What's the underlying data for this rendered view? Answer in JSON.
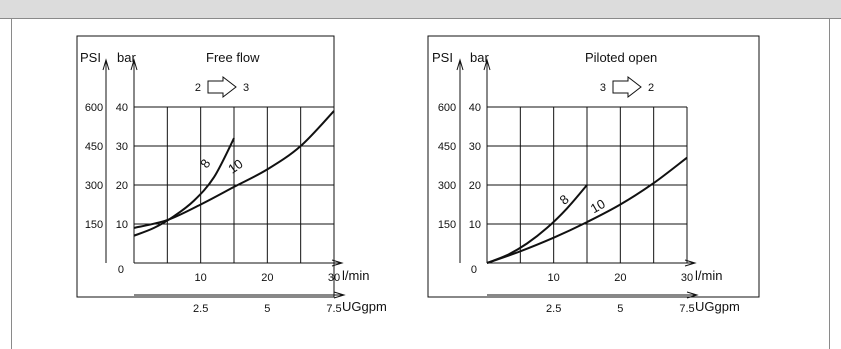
{
  "chart_data": [
    {
      "type": "line",
      "title": "Free flow",
      "flow_direction": {
        "from": "2",
        "to": "3"
      },
      "y_units": {
        "psi": "PSI",
        "bar": "bar"
      },
      "psi_ticks": [
        "600",
        "450",
        "300",
        "150"
      ],
      "bar_ticks": [
        "40",
        "30",
        "20",
        "10",
        "0"
      ],
      "xlabel": "l/min",
      "x_ticks": [
        "10",
        "20",
        "30"
      ],
      "x2label": "UGgpm",
      "x2_ticks": [
        "2.5",
        "5",
        "7.5"
      ],
      "xlim": [
        0,
        30
      ],
      "ylim": [
        0,
        40
      ],
      "grid": true,
      "series": [
        {
          "name": "8",
          "x": [
            0,
            3,
            6,
            9,
            12,
            15
          ],
          "y": [
            7,
            9,
            12,
            16,
            22,
            32
          ]
        },
        {
          "name": "10",
          "x": [
            0,
            5,
            10,
            15,
            20,
            25,
            30
          ],
          "y": [
            9,
            11,
            15,
            19.5,
            24,
            30,
            39
          ]
        }
      ]
    },
    {
      "type": "line",
      "title": "Piloted open",
      "flow_direction": {
        "from": "3",
        "to": "2"
      },
      "y_units": {
        "psi": "PSI",
        "bar": "bar"
      },
      "psi_ticks": [
        "600",
        "450",
        "300",
        "150"
      ],
      "bar_ticks": [
        "40",
        "30",
        "20",
        "10",
        "0"
      ],
      "xlabel": "l/min",
      "x_ticks": [
        "10",
        "20",
        "30"
      ],
      "x2label": "UGgpm",
      "x2_ticks": [
        "2.5",
        "5",
        "7.5"
      ],
      "xlim": [
        0,
        30
      ],
      "ylim": [
        0,
        40
      ],
      "grid": true,
      "series": [
        {
          "name": "8",
          "x": [
            0,
            3,
            6,
            9,
            12,
            15
          ],
          "y": [
            0,
            2,
            5,
            9,
            14,
            20
          ]
        },
        {
          "name": "10",
          "x": [
            0,
            5,
            10,
            15,
            20,
            25,
            30
          ],
          "y": [
            0,
            3,
            6.5,
            10.5,
            15,
            20.5,
            27
          ]
        }
      ]
    }
  ]
}
